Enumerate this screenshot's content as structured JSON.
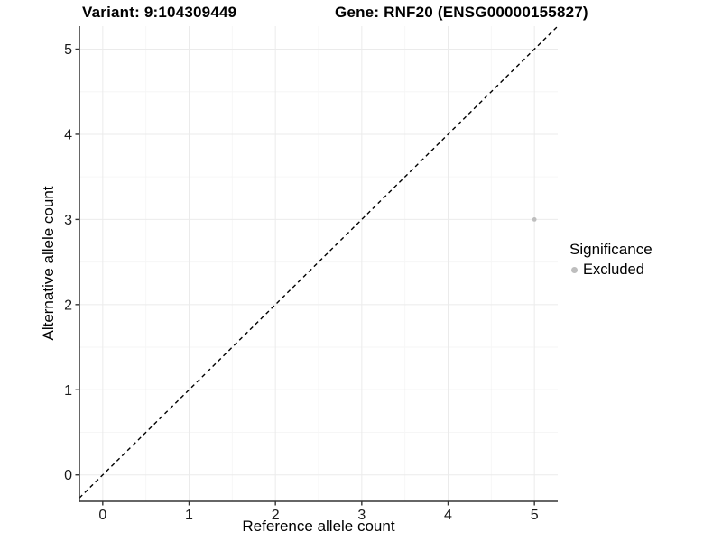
{
  "titles": {
    "variant": "Variant: 9:104309449",
    "gene": "Gene: RNF20 (ENSG00000155827)"
  },
  "axes": {
    "x": {
      "label": "Reference allele count",
      "tick_labels": [
        "0",
        "1",
        "2",
        "3",
        "4",
        "5"
      ]
    },
    "y": {
      "label": "Alternative allele count",
      "tick_labels": [
        "0",
        "1",
        "2",
        "3",
        "4",
        "5"
      ]
    }
  },
  "legend": {
    "title": "Significance",
    "items": [
      {
        "label": "Excluded",
        "marker": "circle-icon",
        "color": "#bebebe"
      }
    ]
  },
  "chart_data": {
    "type": "scatter",
    "title": "Variant: 9:104309449 | Gene: RNF20 (ENSG00000155827)",
    "xlabel": "Reference allele count",
    "ylabel": "Alternative allele count",
    "xlim": [
      -0.27,
      5.27
    ],
    "ylim": [
      -0.31,
      5.27
    ],
    "x_ticks": [
      0,
      1,
      2,
      3,
      4,
      5
    ],
    "y_ticks": [
      0,
      1,
      2,
      3,
      4,
      5
    ],
    "x_minor_ticks": [
      0.5,
      1.5,
      2.5,
      3.5,
      4.5
    ],
    "y_minor_ticks": [
      0.5,
      1.5,
      2.5,
      3.5,
      4.5
    ],
    "grid": "major+minor",
    "legend_position": "right",
    "series": [
      {
        "name": "Excluded",
        "color": "#bebebe",
        "points": [
          [
            5,
            3
          ]
        ]
      }
    ],
    "reference_line": {
      "kind": "identity",
      "equation": "y = x",
      "style": "dashed",
      "color": "#000000"
    }
  },
  "colors": {
    "background": "#ffffff",
    "major_grid": "#ebebeb",
    "minor_grid": "#f6f6f6",
    "axis_line": "#333333",
    "tick_text": "#1a1a1a",
    "point": "#bebebe"
  }
}
